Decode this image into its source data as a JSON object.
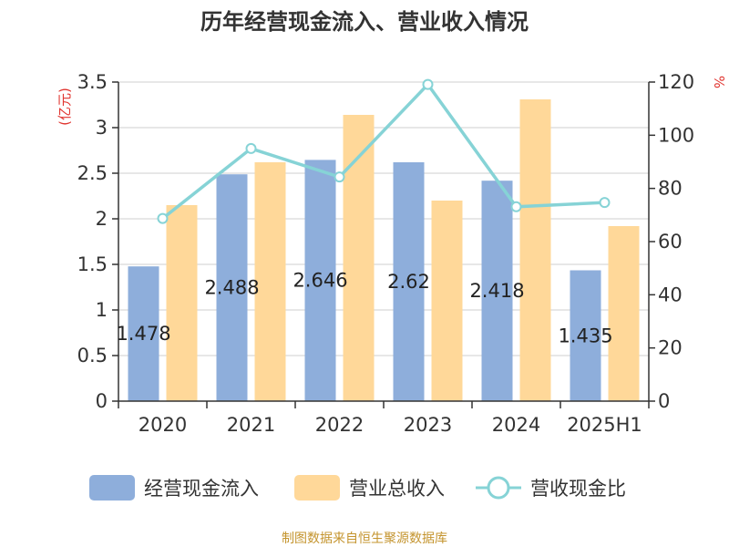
{
  "chart_data": {
    "type": "bar",
    "title": "历年经营现金流入、营业收入情况",
    "categories": [
      "2020",
      "2021",
      "2022",
      "2023",
      "2024",
      "2025H1"
    ],
    "left_axis": {
      "unit": "(亿元)",
      "ylim": [
        0,
        3.5
      ],
      "ticks": [
        "0",
        "0.5",
        "1",
        "1.5",
        "2",
        "2.5",
        "3",
        "3.5"
      ]
    },
    "right_axis": {
      "unit": "%",
      "ylim": [
        0,
        120
      ],
      "ticks": [
        "0",
        "20",
        "40",
        "60",
        "80",
        "100",
        "120"
      ]
    },
    "series": [
      {
        "name": "经营现金流入",
        "kind": "bar",
        "axis": "left",
        "color": "#8eaedb",
        "values": [
          1.478,
          2.488,
          2.646,
          2.62,
          2.418,
          1.435
        ],
        "labels": [
          "1.478",
          "2.488",
          "2.646",
          "2.62",
          "2.418",
          "1.435"
        ]
      },
      {
        "name": "营业总收入",
        "kind": "bar",
        "axis": "left",
        "color": "#ffd899",
        "values": [
          2.15,
          2.62,
          3.14,
          2.2,
          3.31,
          1.92
        ]
      },
      {
        "name": "营收现金比",
        "kind": "line",
        "axis": "right",
        "color": "#86d3d6",
        "values": [
          68.7,
          95.0,
          84.3,
          119.1,
          73.1,
          74.7
        ]
      }
    ],
    "grid": true,
    "legend_position": "bottom"
  },
  "source": "制图数据来自恒生聚源数据库"
}
